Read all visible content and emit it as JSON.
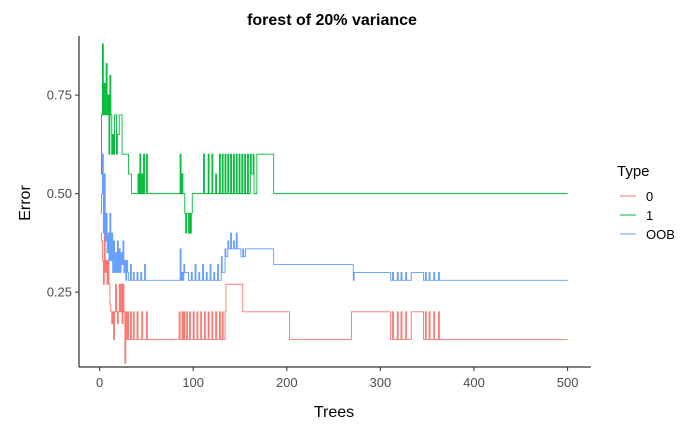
{
  "chart_data": {
    "type": "line",
    "title": "forest of 20% variance",
    "xlabel": "Trees",
    "ylabel": "Error",
    "xlim": [
      -22,
      525
    ],
    "ylim": [
      0.06,
      0.9
    ],
    "xticks": [
      0,
      100,
      200,
      300,
      400,
      500
    ],
    "yticks": [
      0.25,
      0.5,
      0.75
    ],
    "ytick_labels": [
      "0.25",
      "0.50",
      "0.75"
    ],
    "grid": false,
    "legend": {
      "title": "Type",
      "position": "right"
    },
    "series": [
      {
        "name": "0",
        "color": "#F8766D",
        "points": [
          [
            1,
            0.4
          ],
          [
            2,
            0.38
          ],
          [
            3,
            0.33
          ],
          [
            4,
            0.27
          ],
          [
            5,
            0.4
          ],
          [
            6,
            0.3
          ],
          [
            7,
            0.33
          ],
          [
            8,
            0.27
          ],
          [
            9,
            0.33
          ],
          [
            10,
            0.27
          ],
          [
            11,
            0.22
          ],
          [
            12,
            0.2
          ],
          [
            13,
            0.17
          ],
          [
            14,
            0.2
          ],
          [
            15,
            0.13
          ],
          [
            16,
            0.2
          ],
          [
            17,
            0.27
          ],
          [
            18,
            0.2
          ],
          [
            19,
            0.17
          ],
          [
            20,
            0.2
          ],
          [
            21,
            0.27
          ],
          [
            22,
            0.2
          ],
          [
            23,
            0.27
          ],
          [
            24,
            0.17
          ],
          [
            25,
            0.27
          ],
          [
            26,
            0.2
          ],
          [
            27,
            0.07
          ],
          [
            28,
            0.2
          ],
          [
            29,
            0.13
          ],
          [
            30,
            0.2
          ],
          [
            31,
            0.13
          ],
          [
            33,
            0.2
          ],
          [
            34,
            0.13
          ],
          [
            36,
            0.2
          ],
          [
            37,
            0.13
          ],
          [
            40,
            0.2
          ],
          [
            41,
            0.13
          ],
          [
            45,
            0.2
          ],
          [
            46,
            0.13
          ],
          [
            50,
            0.2
          ],
          [
            51,
            0.13
          ],
          [
            85,
            0.2
          ],
          [
            86,
            0.13
          ],
          [
            88,
            0.2
          ],
          [
            89,
            0.13
          ],
          [
            90,
            0.2
          ],
          [
            91,
            0.13
          ],
          [
            93,
            0.2
          ],
          [
            94,
            0.13
          ],
          [
            96,
            0.2
          ],
          [
            97,
            0.13
          ],
          [
            100,
            0.2
          ],
          [
            101,
            0.13
          ],
          [
            104,
            0.2
          ],
          [
            105,
            0.13
          ],
          [
            108,
            0.2
          ],
          [
            109,
            0.13
          ],
          [
            112,
            0.2
          ],
          [
            113,
            0.13
          ],
          [
            116,
            0.2
          ],
          [
            117,
            0.13
          ],
          [
            120,
            0.2
          ],
          [
            121,
            0.13
          ],
          [
            124,
            0.2
          ],
          [
            125,
            0.13
          ],
          [
            128,
            0.2
          ],
          [
            129,
            0.13
          ],
          [
            131,
            0.2
          ],
          [
            132,
            0.13
          ],
          [
            134,
            0.2
          ],
          [
            135,
            0.27
          ],
          [
            152,
            0.27
          ],
          [
            153,
            0.2
          ],
          [
            155,
            0.2
          ],
          [
            156,
            0.2
          ],
          [
            202,
            0.2
          ],
          [
            203,
            0.13
          ],
          [
            268,
            0.13
          ],
          [
            269,
            0.2
          ],
          [
            310,
            0.2
          ],
          [
            311,
            0.13
          ],
          [
            313,
            0.2
          ],
          [
            314,
            0.13
          ],
          [
            318,
            0.2
          ],
          [
            319,
            0.13
          ],
          [
            322,
            0.2
          ],
          [
            323,
            0.13
          ],
          [
            327,
            0.2
          ],
          [
            328,
            0.13
          ],
          [
            333,
            0.2
          ],
          [
            334,
            0.2
          ],
          [
            345,
            0.2
          ],
          [
            346,
            0.13
          ],
          [
            348,
            0.2
          ],
          [
            349,
            0.13
          ],
          [
            352,
            0.2
          ],
          [
            353,
            0.13
          ],
          [
            357,
            0.2
          ],
          [
            358,
            0.13
          ],
          [
            362,
            0.2
          ],
          [
            363,
            0.13
          ],
          [
            500,
            0.13
          ]
        ]
      },
      {
        "name": "1",
        "color": "#00BA38",
        "points": [
          [
            1,
            0.55
          ],
          [
            2,
            0.7
          ],
          [
            3,
            0.88
          ],
          [
            4,
            0.7
          ],
          [
            5,
            0.78
          ],
          [
            6,
            0.7
          ],
          [
            7,
            0.83
          ],
          [
            8,
            0.7
          ],
          [
            9,
            0.75
          ],
          [
            10,
            0.6
          ],
          [
            11,
            0.8
          ],
          [
            12,
            0.7
          ],
          [
            13,
            0.6
          ],
          [
            14,
            0.65
          ],
          [
            15,
            0.6
          ],
          [
            16,
            0.7
          ],
          [
            18,
            0.6
          ],
          [
            19,
            0.65
          ],
          [
            21,
            0.7
          ],
          [
            24,
            0.6
          ],
          [
            30,
            0.6
          ],
          [
            31,
            0.55
          ],
          [
            34,
            0.5
          ],
          [
            40,
            0.5
          ],
          [
            41,
            0.55
          ],
          [
            42,
            0.5
          ],
          [
            43,
            0.6
          ],
          [
            44,
            0.5
          ],
          [
            45,
            0.55
          ],
          [
            46,
            0.5
          ],
          [
            47,
            0.6
          ],
          [
            48,
            0.5
          ],
          [
            50,
            0.6
          ],
          [
            51,
            0.5
          ],
          [
            85,
            0.5
          ],
          [
            86,
            0.6
          ],
          [
            87,
            0.5
          ],
          [
            88,
            0.55
          ],
          [
            89,
            0.5
          ],
          [
            91,
            0.45
          ],
          [
            92,
            0.4
          ],
          [
            93,
            0.45
          ],
          [
            95,
            0.4
          ],
          [
            96,
            0.45
          ],
          [
            97,
            0.4
          ],
          [
            98,
            0.45
          ],
          [
            99,
            0.5
          ],
          [
            110,
            0.5
          ],
          [
            111,
            0.6
          ],
          [
            112,
            0.5
          ],
          [
            116,
            0.6
          ],
          [
            117,
            0.5
          ],
          [
            120,
            0.6
          ],
          [
            121,
            0.5
          ],
          [
            124,
            0.55
          ],
          [
            125,
            0.5
          ],
          [
            128,
            0.6
          ],
          [
            129,
            0.5
          ],
          [
            131,
            0.6
          ],
          [
            132,
            0.5
          ],
          [
            134,
            0.6
          ],
          [
            135,
            0.5
          ],
          [
            137,
            0.6
          ],
          [
            138,
            0.5
          ],
          [
            140,
            0.6
          ],
          [
            141,
            0.5
          ],
          [
            143,
            0.6
          ],
          [
            144,
            0.5
          ],
          [
            146,
            0.6
          ],
          [
            147,
            0.5
          ],
          [
            149,
            0.6
          ],
          [
            150,
            0.5
          ],
          [
            152,
            0.6
          ],
          [
            153,
            0.5
          ],
          [
            155,
            0.6
          ],
          [
            156,
            0.5
          ],
          [
            158,
            0.6
          ],
          [
            159,
            0.5
          ],
          [
            161,
            0.6
          ],
          [
            162,
            0.55
          ],
          [
            164,
            0.6
          ],
          [
            165,
            0.5
          ],
          [
            168,
            0.6
          ],
          [
            185,
            0.6
          ],
          [
            186,
            0.5
          ],
          [
            500,
            0.5
          ]
        ]
      },
      {
        "name": "OOB",
        "color": "#619CFF",
        "points": [
          [
            1,
            0.45
          ],
          [
            2,
            0.5
          ],
          [
            3,
            0.6
          ],
          [
            4,
            0.4
          ],
          [
            5,
            0.55
          ],
          [
            6,
            0.38
          ],
          [
            7,
            0.45
          ],
          [
            8,
            0.35
          ],
          [
            9,
            0.4
          ],
          [
            10,
            0.33
          ],
          [
            11,
            0.45
          ],
          [
            12,
            0.33
          ],
          [
            13,
            0.4
          ],
          [
            14,
            0.3
          ],
          [
            15,
            0.38
          ],
          [
            16,
            0.3
          ],
          [
            17,
            0.35
          ],
          [
            18,
            0.3
          ],
          [
            19,
            0.38
          ],
          [
            20,
            0.3
          ],
          [
            21,
            0.36
          ],
          [
            22,
            0.3
          ],
          [
            23,
            0.35
          ],
          [
            24,
            0.32
          ],
          [
            25,
            0.38
          ],
          [
            26,
            0.3
          ],
          [
            27,
            0.33
          ],
          [
            28,
            0.28
          ],
          [
            29,
            0.33
          ],
          [
            30,
            0.3
          ],
          [
            31,
            0.28
          ],
          [
            33,
            0.32
          ],
          [
            34,
            0.28
          ],
          [
            36,
            0.3
          ],
          [
            37,
            0.28
          ],
          [
            40,
            0.3
          ],
          [
            41,
            0.28
          ],
          [
            44,
            0.3
          ],
          [
            45,
            0.28
          ],
          [
            48,
            0.32
          ],
          [
            49,
            0.28
          ],
          [
            85,
            0.28
          ],
          [
            86,
            0.36
          ],
          [
            87,
            0.28
          ],
          [
            88,
            0.3
          ],
          [
            89,
            0.28
          ],
          [
            90,
            0.32
          ],
          [
            91,
            0.3
          ],
          [
            94,
            0.3
          ],
          [
            95,
            0.28
          ],
          [
            98,
            0.3
          ],
          [
            99,
            0.28
          ],
          [
            102,
            0.32
          ],
          [
            103,
            0.28
          ],
          [
            106,
            0.3
          ],
          [
            107,
            0.28
          ],
          [
            110,
            0.32
          ],
          [
            111,
            0.28
          ],
          [
            114,
            0.3
          ],
          [
            115,
            0.28
          ],
          [
            118,
            0.32
          ],
          [
            119,
            0.28
          ],
          [
            122,
            0.3
          ],
          [
            123,
            0.28
          ],
          [
            126,
            0.32
          ],
          [
            127,
            0.28
          ],
          [
            130,
            0.34
          ],
          [
            131,
            0.3
          ],
          [
            134,
            0.36
          ],
          [
            135,
            0.34
          ],
          [
            137,
            0.38
          ],
          [
            138,
            0.36
          ],
          [
            140,
            0.4
          ],
          [
            141,
            0.36
          ],
          [
            143,
            0.38
          ],
          [
            144,
            0.36
          ],
          [
            146,
            0.4
          ],
          [
            147,
            0.36
          ],
          [
            150,
            0.36
          ],
          [
            151,
            0.34
          ],
          [
            153,
            0.36
          ],
          [
            154,
            0.34
          ],
          [
            156,
            0.36
          ],
          [
            157,
            0.36
          ],
          [
            185,
            0.36
          ],
          [
            186,
            0.32
          ],
          [
            270,
            0.32
          ],
          [
            271,
            0.28
          ],
          [
            272,
            0.3
          ],
          [
            310,
            0.3
          ],
          [
            311,
            0.28
          ],
          [
            313,
            0.3
          ],
          [
            314,
            0.28
          ],
          [
            318,
            0.3
          ],
          [
            319,
            0.28
          ],
          [
            322,
            0.3
          ],
          [
            323,
            0.28
          ],
          [
            327,
            0.3
          ],
          [
            328,
            0.28
          ],
          [
            333,
            0.3
          ],
          [
            334,
            0.3
          ],
          [
            345,
            0.3
          ],
          [
            346,
            0.28
          ],
          [
            348,
            0.3
          ],
          [
            349,
            0.28
          ],
          [
            352,
            0.3
          ],
          [
            353,
            0.28
          ],
          [
            357,
            0.3
          ],
          [
            358,
            0.28
          ],
          [
            362,
            0.3
          ],
          [
            363,
            0.28
          ],
          [
            500,
            0.28
          ]
        ]
      }
    ]
  }
}
